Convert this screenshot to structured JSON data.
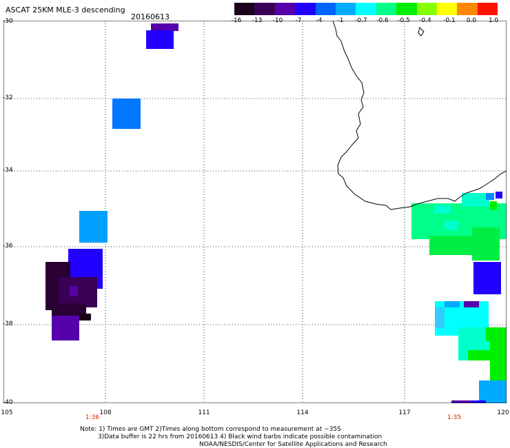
{
  "header": {
    "title": "ASCAT 25KM MLE-3 descending",
    "date": "20160613"
  },
  "colorbar": {
    "labels": [
      "-16",
      "-13",
      "-10",
      "-7",
      "-4",
      "-1",
      "-0.7",
      "-0.6",
      "-0.5",
      "-0.4",
      "-0.1",
      "0.0",
      "1.0"
    ],
    "colors": [
      "#1a0018",
      "#3a0055",
      "#5500aa",
      "#2200ff",
      "#0066ff",
      "#00aaff",
      "#00ffff",
      "#00ff88",
      "#00ee00",
      "#88ff00",
      "#ffff00",
      "#ff8800",
      "#ff1100"
    ]
  },
  "map": {
    "lat_labels": [
      "-30",
      "-32",
      "-34",
      "-36",
      "-38",
      "-40"
    ],
    "lon_labels": [
      "105",
      "108",
      "111",
      "114",
      "117",
      "120"
    ],
    "time_labels": [
      "1:36",
      "1:35"
    ]
  },
  "notes": {
    "line1": "Note: 1) Times are GMT 2)Times along bottom correspond to measurement at ~35S",
    "line2": "3)Data buffer is 22 hrs from 20160613 4) Black wind barbs indicate possible contamination",
    "line3": "NOAA/NESDIS/Center for Satellite Applications and Research"
  }
}
